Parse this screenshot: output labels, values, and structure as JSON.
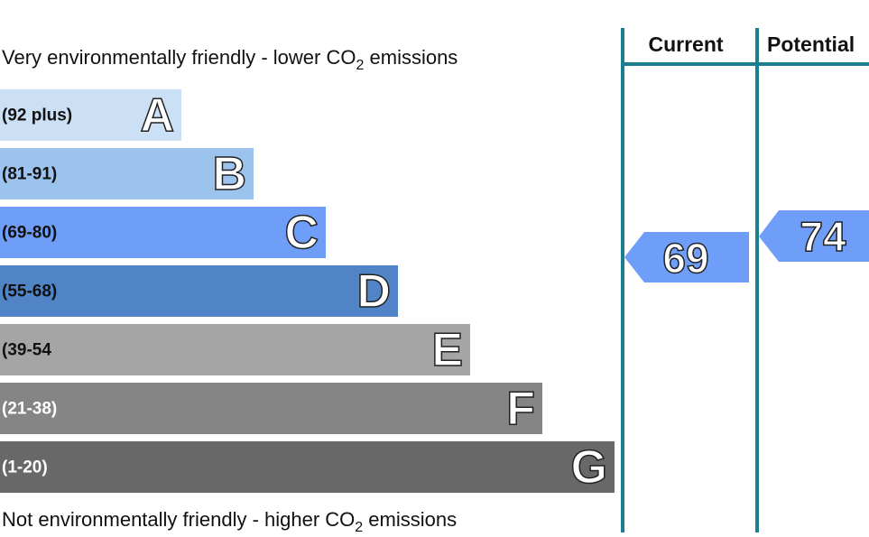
{
  "top_note": {
    "before": "Very environmentally friendly - lower CO",
    "sub": "2",
    "after": " emissions"
  },
  "bottom_note": {
    "before": "Not environmentally friendly - higher CO",
    "sub": "2",
    "after": " emissions"
  },
  "bands": [
    {
      "range": "(92 plus)",
      "letter": "A",
      "color": "#cce0f5"
    },
    {
      "range": "(81-91)",
      "letter": "B",
      "color": "#9cc3ee"
    },
    {
      "range": "(69-80)",
      "letter": "C",
      "color": "#6f9ef8"
    },
    {
      "range": "(55-68)",
      "letter": "D",
      "color": "#5084c6"
    },
    {
      "range": "(39-54",
      "letter": "E",
      "color": "#a5a5a5"
    },
    {
      "range": "(21-38)",
      "letter": "F",
      "color": "#858585"
    },
    {
      "range": "(1-20)",
      "letter": "G",
      "color": "#686868"
    }
  ],
  "columns": {
    "current": "Current",
    "potential": "Potential"
  },
  "ratings": {
    "current": 69,
    "potential": 74
  }
}
